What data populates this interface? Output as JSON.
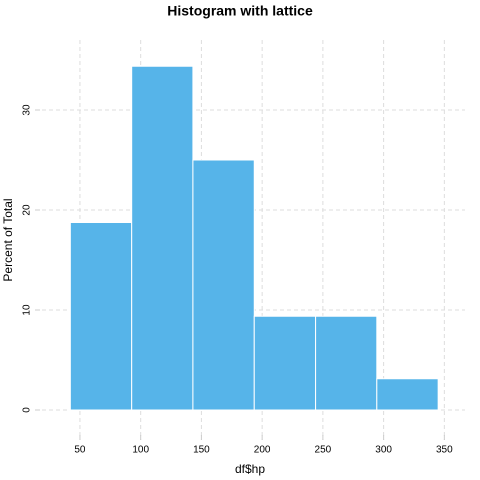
{
  "chart_data": {
    "type": "histogram",
    "title": "Histogram with lattice",
    "xlabel": "df$hp",
    "ylabel": "Percent of Total",
    "bins": [
      42.1,
      92.6,
      143.0,
      193.5,
      244.0,
      294.4,
      344.9
    ],
    "values": [
      18.75,
      34.375,
      25,
      9.375,
      9.375,
      3.125
    ],
    "color": "#56b4e9",
    "xlim": [
      13,
      367
    ],
    "xticks": [
      50,
      100,
      150,
      200,
      250,
      300,
      350
    ],
    "ylim": [
      -3,
      37
    ],
    "yticks": [
      0,
      10,
      20,
      30
    ],
    "grid": true
  }
}
